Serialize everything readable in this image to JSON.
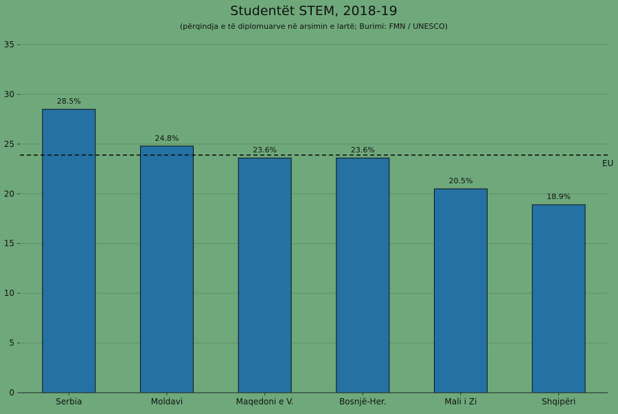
{
  "chart_data": {
    "type": "bar",
    "title": "Studentët STEM, 2018-19",
    "subtitle": "(përqindja e të diplomuarve në arsimin e lartë; Burimi: FMN / UNESCO)",
    "categories": [
      "Serbia",
      "Moldavi",
      "Maqedoni e V.",
      "Bosnjë-Her.",
      "Mali i Zi",
      "Shqipëri"
    ],
    "values": [
      28.5,
      24.8,
      23.6,
      23.6,
      20.5,
      18.9
    ],
    "value_labels": [
      "28.5%",
      "24.8%",
      "23.6%",
      "23.6%",
      "20.5%",
      "18.9%"
    ],
    "ylim": [
      0,
      35
    ],
    "yticks": [
      0,
      5,
      10,
      15,
      20,
      25,
      30,
      35
    ],
    "grid": true,
    "reference_line": {
      "label": "EU",
      "value": 23.9
    },
    "colors": {
      "background": "#6fa97b",
      "bar": "#2471a3",
      "bar_edge": "#111111",
      "grid": "#5d9068"
    }
  }
}
